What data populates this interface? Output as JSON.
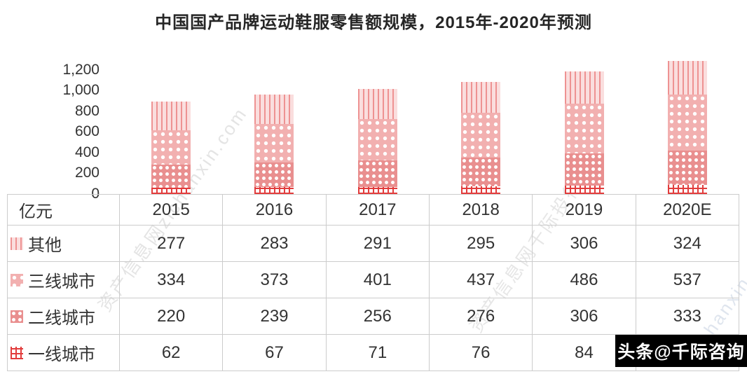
{
  "title": "中国国产品牌运动鞋服零售额规模，2015年-2020年预测",
  "chart_data": {
    "type": "bar",
    "stacked": true,
    "unit": "亿元",
    "categories": [
      "2015",
      "2016",
      "2017",
      "2018",
      "2019",
      "2020E"
    ],
    "series": [
      {
        "name": "一线城市",
        "pattern": "grid",
        "color": "#e23c3c",
        "values": [
          62,
          67,
          71,
          76,
          84,
          90
        ]
      },
      {
        "name": "二线城市",
        "pattern": "dots-dense",
        "color": "#e98f8f",
        "values": [
          220,
          239,
          256,
          276,
          306,
          333
        ]
      },
      {
        "name": "三线城市",
        "pattern": "dots",
        "color": "#f2b0b0",
        "values": [
          334,
          373,
          401,
          437,
          486,
          537
        ]
      },
      {
        "name": "其他",
        "pattern": "vlines",
        "color": "#fadede",
        "values": [
          277,
          283,
          291,
          295,
          306,
          324
        ]
      }
    ],
    "ylim": [
      0,
      1300
    ],
    "ytick_step": 200,
    "yticks": [
      "0",
      "200",
      "400",
      "600",
      "800",
      "1,000",
      "1,200"
    ],
    "grid": false,
    "legend_position": "table-left"
  },
  "table": {
    "unit_label": "亿元",
    "columns": [
      "2015",
      "2016",
      "2017",
      "2018",
      "2019",
      "2020E"
    ],
    "rows": [
      {
        "label": "其他",
        "pattern": "vlines",
        "values": [
          "277",
          "283",
          "291",
          "295",
          "306",
          "324"
        ]
      },
      {
        "label": "三线城市",
        "pattern": "dots",
        "values": [
          "334",
          "373",
          "401",
          "437",
          "486",
          "537"
        ]
      },
      {
        "label": "二线城市",
        "pattern": "dots-dense",
        "values": [
          "220",
          "239",
          "256",
          "276",
          "306",
          "333"
        ]
      },
      {
        "label": "一线城市",
        "pattern": "grid",
        "values": [
          "62",
          "67",
          "71",
          "76",
          "84",
          ""
        ]
      }
    ]
  },
  "watermarks": {
    "badge": "头条@千际咨询",
    "diagonal_left": "资产信息网zichanxin.com",
    "diagonal_mid": "资产信息网千际投行",
    "diagonal_right": "zichanxin.com"
  }
}
